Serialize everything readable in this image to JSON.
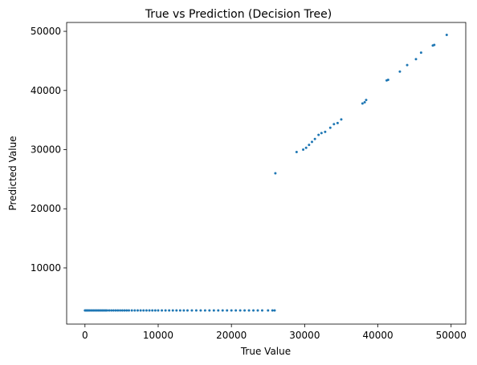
{
  "chart_data": {
    "type": "scatter",
    "title": "True vs Prediction (Decision Tree)",
    "xlabel": "True Value",
    "ylabel": "Predicted Value",
    "xlim": [
      -2500,
      52000
    ],
    "ylim": [
      500,
      51500
    ],
    "xticks": [
      0,
      10000,
      20000,
      30000,
      40000,
      50000
    ],
    "yticks": [
      10000,
      20000,
      30000,
      40000,
      50000
    ],
    "grid": false,
    "marker_color": "#1f77b4",
    "series": [
      {
        "x": [
          0,
          150,
          300,
          450,
          600,
          800,
          1000,
          1200,
          1400,
          1600,
          1800,
          2000,
          2200,
          2400,
          2600,
          2800,
          3000,
          3300,
          3600,
          3900,
          4200,
          4500,
          4800,
          5100,
          5400,
          5700,
          6000,
          6400,
          6800,
          7200,
          7600,
          8000,
          8400,
          8800,
          9200,
          9600,
          10000,
          10500,
          11000,
          11500,
          12000,
          12500,
          13000,
          13500,
          14000,
          14600,
          15200,
          15800,
          16400,
          17000,
          17600,
          18200,
          18800,
          19400,
          20000,
          20600,
          21200,
          21800,
          22400,
          23000,
          23600,
          24200,
          25000,
          25600,
          25900,
          26000,
          28900,
          29800,
          30200,
          30600,
          31000,
          31400,
          31900,
          32300,
          32800,
          33500,
          34000,
          34500,
          35000,
          37900,
          38200,
          38400,
          41200,
          41400,
          43000,
          44000,
          45200,
          45900,
          47500,
          47700,
          49400
        ],
        "y": [
          2800,
          2800,
          2800,
          2800,
          2800,
          2800,
          2800,
          2800,
          2800,
          2800,
          2800,
          2800,
          2800,
          2800,
          2800,
          2800,
          2800,
          2800,
          2800,
          2800,
          2800,
          2800,
          2800,
          2800,
          2800,
          2800,
          2800,
          2800,
          2800,
          2800,
          2800,
          2800,
          2800,
          2800,
          2800,
          2800,
          2800,
          2800,
          2800,
          2800,
          2800,
          2800,
          2800,
          2800,
          2800,
          2800,
          2800,
          2800,
          2800,
          2800,
          2800,
          2800,
          2800,
          2800,
          2800,
          2800,
          2800,
          2800,
          2800,
          2800,
          2800,
          2800,
          2800,
          2800,
          2800,
          26000,
          29600,
          30000,
          30300,
          30800,
          31300,
          31800,
          32500,
          32800,
          33000,
          33700,
          34300,
          34500,
          35100,
          37800,
          38000,
          38400,
          41700,
          41800,
          43200,
          44300,
          45300,
          46400,
          47600,
          47700,
          49400
        ]
      }
    ]
  }
}
